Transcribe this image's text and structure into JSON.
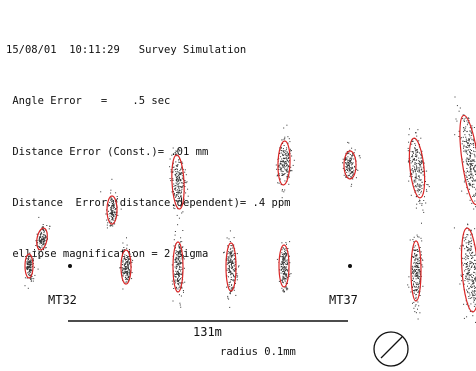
{
  "header": {
    "lines": [
      "15/08/01  10:11:29   Survey Simulation",
      " Angle Error   =    .5 sec",
      " Distance Error (Const.)= .01 mm",
      " Distance  Error (distance.dependent)= .4 ppm",
      " ellipse magnification = 2 sigma"
    ]
  },
  "stations": [
    {
      "label": "MT32"
    },
    {
      "label": "MT37"
    }
  ],
  "scale_bar": {
    "label": "131m"
  },
  "radius_circle": {
    "label": "radius 0.1mm"
  },
  "colors": {
    "ellipse": "#d92626",
    "scatter": "#333333",
    "text": "#111111",
    "background": "#ffffff"
  }
}
